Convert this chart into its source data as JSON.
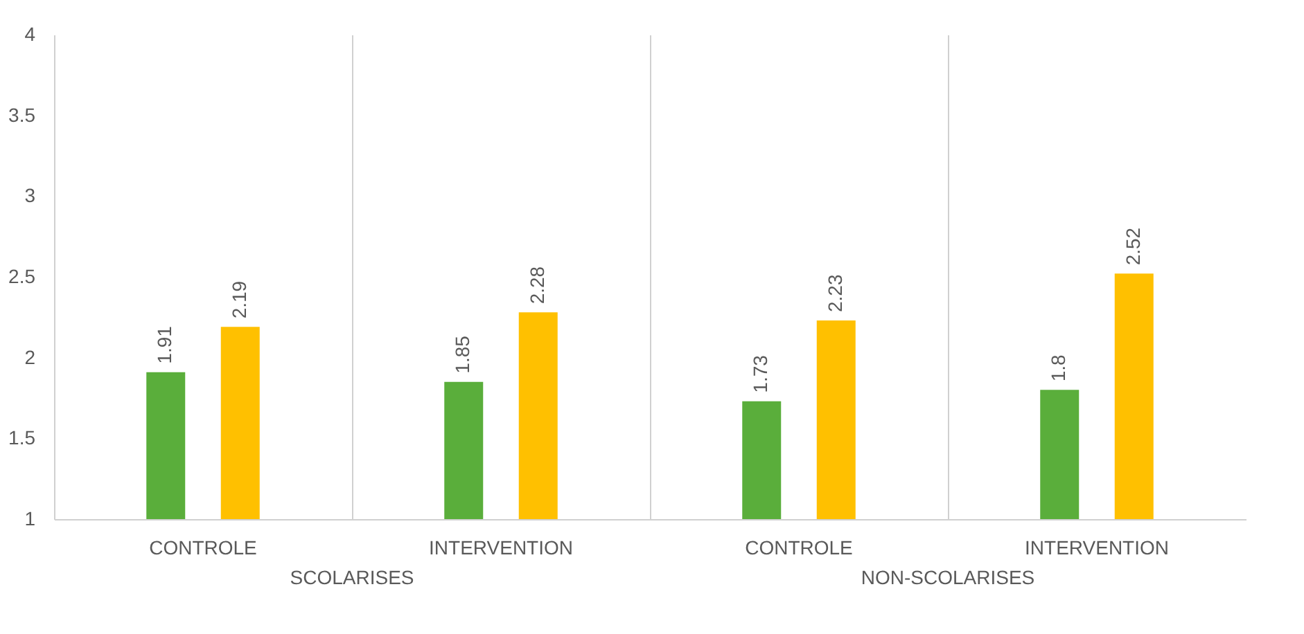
{
  "chart_data": {
    "type": "bar",
    "categories": [
      "CONTROLE",
      "INTERVENTION",
      "CONTROLE",
      "INTERVENTION"
    ],
    "series": [
      {
        "color": "#5aae3b",
        "values": [
          1.91,
          1.85,
          1.73,
          1.8
        ]
      },
      {
        "color": "#ffc000",
        "values": [
          2.19,
          2.28,
          2.23,
          2.52
        ]
      }
    ],
    "ylim": [
      1,
      4
    ],
    "yticks": [
      1,
      1.5,
      2,
      2.5,
      3,
      3.5,
      4
    ],
    "grid": "x",
    "legend": false,
    "data_labels": true,
    "annotations": [
      "SCOLARISES",
      "NON-SCOLARISES"
    ]
  }
}
